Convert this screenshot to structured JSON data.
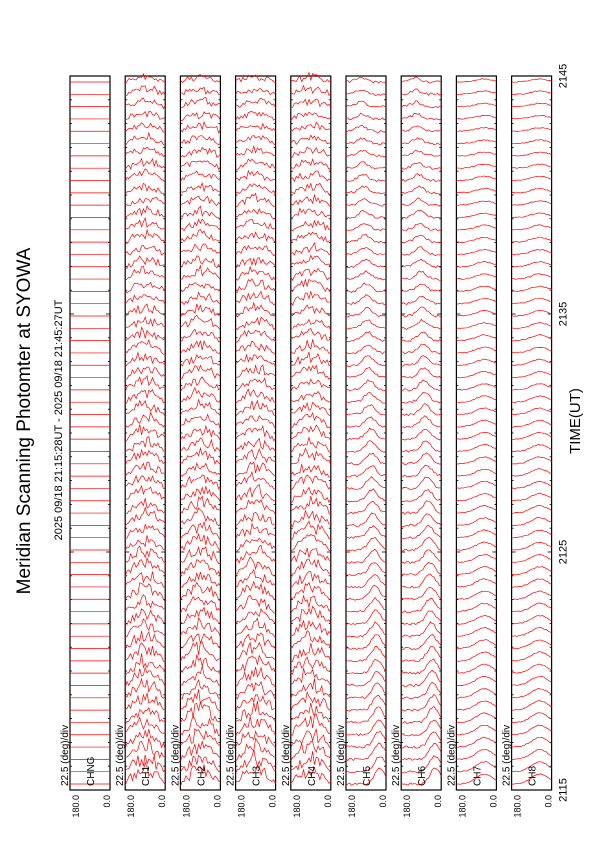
{
  "chart_data": {
    "type": "line",
    "orientation": "rotated-90-ccw",
    "title": "Meridian Scanning Photomter at SYOWA",
    "subtitle": "2025 09/18 21:15:28UT - 2025 09/18 21:45:27UT",
    "xlabel": "TIME(UT)",
    "x_ticks": [
      "2115",
      "2125",
      "2135",
      "2145"
    ],
    "x_range": [
      "2115",
      "2145"
    ],
    "scan_count": 58,
    "panels": [
      {
        "channel": "CHNG",
        "scale": "22.5 (deg)/div",
        "y_top": "180.0",
        "y_bottom": "0.0",
        "color": "#ff0000",
        "profile": "flat"
      },
      {
        "channel": "CH1",
        "scale": "22.5 (deg)/div",
        "y_top": "180.0",
        "y_bottom": "0.0",
        "color": "#ff0000",
        "profile": "noisy"
      },
      {
        "channel": "CH2",
        "scale": "22.5 (deg)/div",
        "y_top": "180.0",
        "y_bottom": "0.0",
        "color": "#ff0000",
        "profile": "noisy"
      },
      {
        "channel": "CH3",
        "scale": "22.5 (deg)/div",
        "y_top": "180.0",
        "y_bottom": "0.0",
        "color": "#ff0000",
        "profile": "noisy"
      },
      {
        "channel": "CH4",
        "scale": "22.5 (deg)/div",
        "y_top": "180.0",
        "y_bottom": "0.0",
        "color": "#ff0000",
        "profile": "noisy"
      },
      {
        "channel": "CH5",
        "scale": "22.5 (deg)/div",
        "y_top": "180.0",
        "y_bottom": "0.0",
        "color": "#ff0000",
        "profile": "peaked"
      },
      {
        "channel": "CH6",
        "scale": "22.5 (deg)/div",
        "y_top": "180.0",
        "y_bottom": "0.0",
        "color": "#ff0000",
        "profile": "peaked"
      },
      {
        "channel": "CH7",
        "scale": "22.5 (deg)/div",
        "y_top": "180.0",
        "y_bottom": "0.0",
        "color": "#ff0000",
        "profile": "smooth"
      },
      {
        "channel": "CH8",
        "scale": "22.5 (deg)/div",
        "y_top": "180.0",
        "y_bottom": "0.0",
        "color": "#ff0000",
        "profile": "smooth"
      }
    ]
  }
}
